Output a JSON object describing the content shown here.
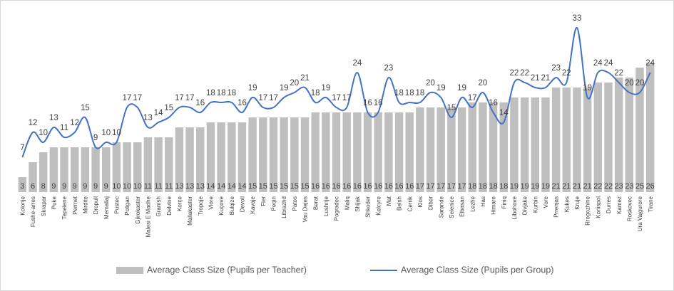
{
  "chart_data": {
    "type": "bar-line",
    "categories": [
      "Kolonje",
      "Fushe-arres",
      "Skrapar",
      "Puke",
      "Tepelene",
      "Permet",
      "Mirdite",
      "Dropull",
      "Memaliaj",
      "Pustec",
      "Poligan",
      "Gjirokaster",
      "Malesi E Madhe",
      "Gramsh",
      "Delvine",
      "Korçe",
      "Mallakaster",
      "Tropoje",
      "Vlore",
      "Kuçove",
      "Bulqize",
      "Devoll",
      "Kavaje",
      "Fier",
      "Peqin",
      "Librazhd",
      "Patos",
      "Vau Dejes",
      "Berat",
      "Lushnje",
      "Pogradec",
      "Maliq",
      "Shijak",
      "Shkoder",
      "Kelcyre",
      "Mat",
      "Belsh",
      "Cerrik",
      "Klos",
      "Diber",
      "Sarande",
      "Selenice",
      "Elbasan",
      "Lezhe",
      "Has",
      "Himare",
      "Finiq",
      "Libohove",
      "Divjake",
      "Kurbin",
      "Vore",
      "Prrenjas",
      "Kukes",
      "Kruje",
      "Rrogozhine",
      "Konispol",
      "Durres",
      "Kamez",
      "Roskovec",
      "Ura Vajgurore",
      "Tirane"
    ],
    "series": [
      {
        "name": "Average Class Size (Pupils per Teacher)",
        "kind": "bar",
        "color": "#bfbfbf",
        "values": [
          3,
          6,
          8,
          9,
          9,
          9,
          9,
          9,
          9,
          10,
          10,
          10,
          11,
          11,
          11,
          13,
          13,
          13,
          14,
          14,
          14,
          14,
          15,
          15,
          15,
          15,
          15,
          15,
          16,
          16,
          16,
          16,
          16,
          16,
          16,
          16,
          16,
          16,
          17,
          17,
          17,
          17,
          17,
          18,
          18,
          18,
          18,
          19,
          19,
          19,
          19,
          21,
          21,
          21,
          21,
          22,
          22,
          23,
          23,
          25,
          26
        ]
      },
      {
        "name": "Average Class Size (Pupils per Group)",
        "kind": "line",
        "color": "#4472c4",
        "values": [
          7,
          12,
          10,
          13,
          11,
          12,
          15,
          9,
          10,
          10,
          17,
          17,
          13,
          14,
          15,
          17,
          17,
          16,
          18,
          18,
          18,
          16,
          19,
          17,
          17,
          19,
          20,
          21,
          18,
          19,
          17,
          17,
          24,
          16,
          16,
          23,
          18,
          18,
          18,
          20,
          19,
          15,
          19,
          17,
          20,
          16,
          14,
          22,
          22,
          21,
          21,
          23,
          22,
          33,
          19,
          24,
          24,
          22,
          20,
          20,
          24
        ]
      }
    ],
    "ylim": [
      0,
      34
    ],
    "legend": "bottom"
  }
}
